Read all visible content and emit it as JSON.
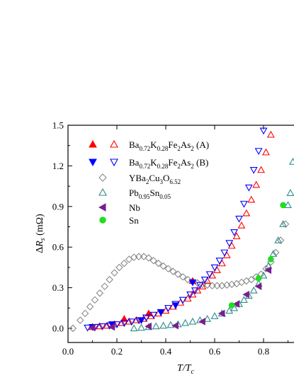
{
  "chart_data": {
    "type": "scatter",
    "xlabel": "T/Tc",
    "ylabel": "ΔRs (mΩ)",
    "xlim": [
      0.0,
      0.9
    ],
    "ylim": [
      -0.1,
      1.5
    ],
    "xticks": [
      0.0,
      0.2,
      0.4,
      0.6,
      0.8
    ],
    "yticks": [
      0.0,
      0.3,
      0.6,
      0.9,
      1.2,
      1.5
    ],
    "xtick_labels": [
      "0.0",
      "0.2",
      "0.4",
      "0.6",
      "0.8"
    ],
    "ytick_labels": [
      "0.0",
      "0.3",
      "0.6",
      "0.9",
      "1.2",
      "1.5"
    ],
    "legend_position": "top-left",
    "series": [
      {
        "name": "Ba0.72K0.28Fe2As2 (A)",
        "legend_label": {
          "main": "Ba",
          "parts": [
            [
              "0.72",
              1
            ],
            [
              "K",
              0
            ],
            [
              "0.28",
              1
            ],
            [
              "Fe",
              0
            ],
            [
              "2",
              1
            ],
            [
              "As",
              0
            ],
            [
              "2",
              1
            ],
            [
              " (A)",
              0
            ]
          ]
        },
        "color": "#ff0000",
        "marker": "triangle-up",
        "filled_points": [
          [
            0.23,
            0.07
          ],
          [
            0.33,
            0.11
          ],
          [
            0.51,
            0.35
          ]
        ],
        "points": [
          [
            0.1,
            0.01
          ],
          [
            0.13,
            0.015
          ],
          [
            0.16,
            0.02
          ],
          [
            0.19,
            0.03
          ],
          [
            0.22,
            0.04
          ],
          [
            0.25,
            0.05
          ],
          [
            0.28,
            0.06
          ],
          [
            0.31,
            0.07
          ],
          [
            0.34,
            0.09
          ],
          [
            0.37,
            0.11
          ],
          [
            0.4,
            0.13
          ],
          [
            0.43,
            0.16
          ],
          [
            0.46,
            0.19
          ],
          [
            0.49,
            0.22
          ],
          [
            0.51,
            0.25
          ],
          [
            0.53,
            0.28
          ],
          [
            0.55,
            0.31
          ],
          [
            0.57,
            0.35
          ],
          [
            0.59,
            0.39
          ],
          [
            0.61,
            0.43
          ],
          [
            0.63,
            0.48
          ],
          [
            0.65,
            0.54
          ],
          [
            0.67,
            0.61
          ],
          [
            0.69,
            0.68
          ],
          [
            0.71,
            0.76
          ],
          [
            0.73,
            0.85
          ],
          [
            0.75,
            0.95
          ],
          [
            0.77,
            1.06
          ],
          [
            0.79,
            1.17
          ],
          [
            0.81,
            1.3
          ],
          [
            0.83,
            1.43
          ]
        ]
      },
      {
        "name": "Ba0.72K0.28Fe2As2 (B)",
        "legend_label": {
          "main": "Ba",
          "parts": [
            [
              "0.72",
              1
            ],
            [
              "K",
              0
            ],
            [
              "0.28",
              1
            ],
            [
              "Fe",
              0
            ],
            [
              "2",
              1
            ],
            [
              "As",
              0
            ],
            [
              "2",
              1
            ],
            [
              " (B)",
              0
            ]
          ]
        },
        "color": "#0000ff",
        "marker": "triangle-down",
        "filled_points": [
          [
            0.1,
            0.01
          ],
          [
            0.18,
            0.03
          ],
          [
            0.3,
            0.06
          ],
          [
            0.38,
            0.12
          ],
          [
            0.44,
            0.17
          ],
          [
            0.51,
            0.34
          ]
        ],
        "points": [
          [
            0.08,
            0.005
          ],
          [
            0.11,
            0.01
          ],
          [
            0.14,
            0.015
          ],
          [
            0.17,
            0.02
          ],
          [
            0.2,
            0.03
          ],
          [
            0.23,
            0.04
          ],
          [
            0.26,
            0.05
          ],
          [
            0.29,
            0.06
          ],
          [
            0.32,
            0.08
          ],
          [
            0.35,
            0.1
          ],
          [
            0.38,
            0.12
          ],
          [
            0.41,
            0.15
          ],
          [
            0.44,
            0.18
          ],
          [
            0.47,
            0.21
          ],
          [
            0.5,
            0.25
          ],
          [
            0.52,
            0.28
          ],
          [
            0.54,
            0.32
          ],
          [
            0.56,
            0.36
          ],
          [
            0.58,
            0.4
          ],
          [
            0.6,
            0.45
          ],
          [
            0.62,
            0.5
          ],
          [
            0.64,
            0.56
          ],
          [
            0.66,
            0.63
          ],
          [
            0.68,
            0.71
          ],
          [
            0.7,
            0.81
          ],
          [
            0.72,
            0.92
          ],
          [
            0.74,
            1.04
          ],
          [
            0.76,
            1.17
          ],
          [
            0.78,
            1.31
          ],
          [
            0.8,
            1.46
          ]
        ]
      },
      {
        "name": "YBa2Cu3O6.52",
        "legend_label": {
          "main": "YBa",
          "parts": [
            [
              "2",
              1
            ],
            [
              "Cu",
              0
            ],
            [
              "3",
              1
            ],
            [
              "O",
              0
            ],
            [
              "6.52",
              1
            ]
          ]
        },
        "color": "#808080",
        "marker": "diamond-open",
        "points": [
          [
            0.02,
            0.0
          ],
          [
            0.05,
            0.06
          ],
          [
            0.07,
            0.11
          ],
          [
            0.09,
            0.16
          ],
          [
            0.11,
            0.21
          ],
          [
            0.13,
            0.26
          ],
          [
            0.15,
            0.31
          ],
          [
            0.17,
            0.36
          ],
          [
            0.19,
            0.41
          ],
          [
            0.21,
            0.45
          ],
          [
            0.23,
            0.48
          ],
          [
            0.25,
            0.51
          ],
          [
            0.27,
            0.525
          ],
          [
            0.29,
            0.53
          ],
          [
            0.31,
            0.53
          ],
          [
            0.33,
            0.52
          ],
          [
            0.35,
            0.5
          ],
          [
            0.37,
            0.48
          ],
          [
            0.39,
            0.46
          ],
          [
            0.41,
            0.44
          ],
          [
            0.43,
            0.42
          ],
          [
            0.45,
            0.4
          ],
          [
            0.47,
            0.38
          ],
          [
            0.49,
            0.36
          ],
          [
            0.51,
            0.345
          ],
          [
            0.53,
            0.335
          ],
          [
            0.55,
            0.325
          ],
          [
            0.57,
            0.32
          ],
          [
            0.59,
            0.315
          ],
          [
            0.61,
            0.315
          ],
          [
            0.63,
            0.315
          ],
          [
            0.65,
            0.32
          ],
          [
            0.67,
            0.325
          ],
          [
            0.69,
            0.33
          ],
          [
            0.71,
            0.34
          ],
          [
            0.73,
            0.35
          ],
          [
            0.75,
            0.36
          ],
          [
            0.77,
            0.38
          ],
          [
            0.79,
            0.4
          ],
          [
            0.81,
            0.44
          ],
          [
            0.83,
            0.49
          ],
          [
            0.85,
            0.56
          ],
          [
            0.87,
            0.65
          ],
          [
            0.89,
            0.77
          ]
        ]
      },
      {
        "name": "Pb0.95Sn0.05",
        "legend_label": {
          "main": "Pb",
          "parts": [
            [
              "0.95",
              1
            ],
            [
              "Sn",
              0
            ],
            [
              "0.05",
              1
            ]
          ]
        },
        "color": "#2e8b8b",
        "marker": "triangle-up-open",
        "points": [
          [
            0.27,
            0.0
          ],
          [
            0.3,
            0.005
          ],
          [
            0.33,
            0.01
          ],
          [
            0.36,
            0.015
          ],
          [
            0.39,
            0.02
          ],
          [
            0.42,
            0.025
          ],
          [
            0.45,
            0.03
          ],
          [
            0.48,
            0.04
          ],
          [
            0.51,
            0.05
          ],
          [
            0.54,
            0.06
          ],
          [
            0.57,
            0.07
          ],
          [
            0.6,
            0.09
          ],
          [
            0.63,
            0.11
          ],
          [
            0.66,
            0.13
          ],
          [
            0.68,
            0.15
          ],
          [
            0.7,
            0.18
          ],
          [
            0.72,
            0.21
          ],
          [
            0.74,
            0.24
          ],
          [
            0.76,
            0.28
          ],
          [
            0.78,
            0.33
          ],
          [
            0.8,
            0.39
          ],
          [
            0.82,
            0.46
          ],
          [
            0.84,
            0.55
          ],
          [
            0.86,
            0.65
          ],
          [
            0.88,
            0.77
          ],
          [
            0.9,
            0.91
          ],
          [
            0.91,
            1.0
          ],
          [
            0.92,
            1.23
          ]
        ]
      },
      {
        "name": "Nb",
        "legend_label": {
          "main": "Nb",
          "parts": []
        },
        "color": "#7a1e8c",
        "marker": "triangle-left",
        "points": [
          [
            0.1,
            0.005
          ],
          [
            0.18,
            0.01
          ],
          [
            0.33,
            0.015
          ],
          [
            0.44,
            0.02
          ],
          [
            0.55,
            0.05
          ],
          [
            0.63,
            0.11
          ],
          [
            0.69,
            0.18
          ],
          [
            0.73,
            0.25
          ],
          [
            0.78,
            0.31
          ],
          [
            0.82,
            0.43
          ]
        ]
      },
      {
        "name": "Sn",
        "legend_label": {
          "main": "Sn",
          "parts": []
        },
        "color": "#22dd22",
        "marker": "circle",
        "points": [
          [
            0.67,
            0.17
          ],
          [
            0.78,
            0.37
          ],
          [
            0.83,
            0.51
          ],
          [
            0.88,
            0.91
          ]
        ]
      }
    ]
  }
}
